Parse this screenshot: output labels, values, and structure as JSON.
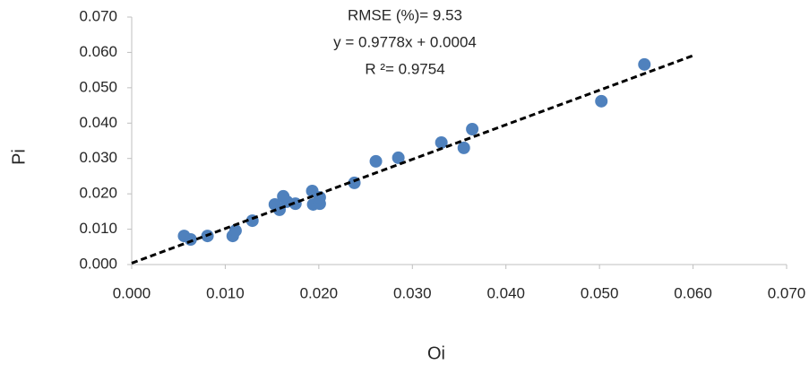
{
  "chart_data": {
    "type": "scatter",
    "x_label": "Oi",
    "y_label": "Pi",
    "annotations": [
      "RMSE (%)= 9.53",
      "y = 0.9778x + 0.0004",
      "R ²= 0.9754"
    ],
    "color": "#4f81bd",
    "x": [
      0.0056,
      0.0063,
      0.0081,
      0.0108,
      0.0111,
      0.0129,
      0.0153,
      0.0158,
      0.0162,
      0.0166,
      0.0175,
      0.0193,
      0.0194,
      0.0201,
      0.0201,
      0.0238,
      0.0261,
      0.0285,
      0.0331,
      0.0355,
      0.0364,
      0.0502,
      0.0548
    ],
    "values": [
      0.0081,
      0.0071,
      0.0081,
      0.0081,
      0.0096,
      0.0124,
      0.017,
      0.0155,
      0.0193,
      0.0178,
      0.0172,
      0.0208,
      0.017,
      0.0172,
      0.019,
      0.0231,
      0.0292,
      0.0302,
      0.0345,
      0.033,
      0.0383,
      0.0462,
      0.0566
    ],
    "trendline": {
      "x": [
        0,
        0.06
      ],
      "values": [
        0.0004,
        0.0591
      ],
      "color": "#000000"
    },
    "xlim": [
      0,
      0.07
    ],
    "ylim": [
      0,
      0.07
    ],
    "xticks": [
      {
        "value": 0,
        "label": "0.000"
      },
      {
        "value": 0.01,
        "label": "0.010"
      },
      {
        "value": 0.02,
        "label": "0.020"
      },
      {
        "value": 0.03,
        "label": "0.030"
      },
      {
        "value": 0.04,
        "label": "0.040"
      },
      {
        "value": 0.05,
        "label": "0.050"
      },
      {
        "value": 0.06,
        "label": "0.060"
      },
      {
        "value": 0.07,
        "label": "0.070"
      }
    ],
    "yticks": [
      {
        "value": 0,
        "label": "0.000"
      },
      {
        "value": 0.01,
        "label": "0.010"
      },
      {
        "value": 0.02,
        "label": "0.020"
      },
      {
        "value": 0.03,
        "label": "0.030"
      },
      {
        "value": 0.04,
        "label": "0.040"
      },
      {
        "value": 0.05,
        "label": "0.050"
      },
      {
        "value": 0.06,
        "label": "0.060"
      },
      {
        "value": 0.07,
        "label": "0.070"
      }
    ],
    "grid": false
  }
}
